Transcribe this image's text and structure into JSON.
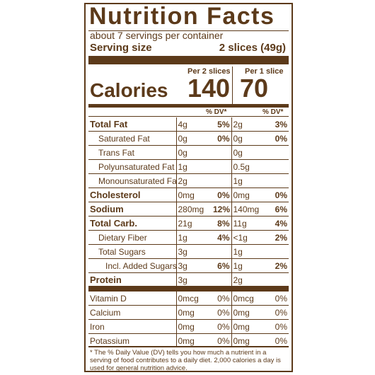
{
  "title": "Nutrition Facts",
  "servings_per_container": "about 7 servings per container",
  "serving_size_label": "Serving size",
  "serving_size_value": "2 slices (49g)",
  "col1_header": "Per 2 slices",
  "col2_header": "Per 1 slice",
  "calories_label": "Calories",
  "calories_col1": "140",
  "calories_col2": "70",
  "dv_header": "% DV*",
  "nutrients": [
    {
      "name": "Total Fat",
      "bold": true,
      "indent": 0,
      "amt1": "4g",
      "dv1": "5%",
      "amt2": "2g",
      "dv2": "3%"
    },
    {
      "name": "Saturated Fat",
      "bold": false,
      "indent": 1,
      "amt1": "0g",
      "dv1": "0%",
      "amt2": "0g",
      "dv2": "0%"
    },
    {
      "name": "Trans Fat",
      "bold": false,
      "indent": 1,
      "amt1": "0g",
      "dv1": "",
      "amt2": "0g",
      "dv2": ""
    },
    {
      "name": "Polyunsaturated Fat",
      "bold": false,
      "indent": 1,
      "amt1": "1g",
      "dv1": "",
      "amt2": "0.5g",
      "dv2": ""
    },
    {
      "name": "Monounsaturated Fat",
      "bold": false,
      "indent": 1,
      "amt1": "2g",
      "dv1": "",
      "amt2": "1g",
      "dv2": ""
    },
    {
      "name": "Cholesterol",
      "bold": true,
      "indent": 0,
      "amt1": "0mg",
      "dv1": "0%",
      "amt2": "0mg",
      "dv2": "0%"
    },
    {
      "name": "Sodium",
      "bold": true,
      "indent": 0,
      "amt1": "280mg",
      "dv1": "12%",
      "amt2": "140mg",
      "dv2": "6%"
    },
    {
      "name": "Total Carb.",
      "bold": true,
      "indent": 0,
      "amt1": "21g",
      "dv1": "8%",
      "amt2": "11g",
      "dv2": "4%"
    },
    {
      "name": "Dietary Fiber",
      "bold": false,
      "indent": 1,
      "amt1": "1g",
      "dv1": "4%",
      "amt2": "<1g",
      "dv2": "2%"
    },
    {
      "name": "Total Sugars",
      "bold": false,
      "indent": 1,
      "amt1": "3g",
      "dv1": "",
      "amt2": "1g",
      "dv2": ""
    },
    {
      "name": "Incl. Added Sugars",
      "bold": false,
      "indent": 2,
      "amt1": "3g",
      "dv1": "6%",
      "amt2": "1g",
      "dv2": "2%"
    },
    {
      "name": "Protein",
      "bold": true,
      "indent": 0,
      "amt1": "3g",
      "dv1": "",
      "amt2": "2g",
      "dv2": ""
    }
  ],
  "vitamins": [
    {
      "name": "Vitamin D",
      "amt1": "0mcg",
      "dv1": "0%",
      "amt2": "0mcg",
      "dv2": "0%"
    },
    {
      "name": "Calcium",
      "amt1": "0mg",
      "dv1": "0%",
      "amt2": "0mg",
      "dv2": "0%"
    },
    {
      "name": "Iron",
      "amt1": "0mg",
      "dv1": "0%",
      "amt2": "0mg",
      "dv2": "0%"
    },
    {
      "name": "Potassium",
      "amt1": "0mg",
      "dv1": "0%",
      "amt2": "0mg",
      "dv2": "0%"
    }
  ],
  "footnote": "* The % Daily Value (DV) tells you how much a nutrient in a serving of food contributes to a daily diet. 2,000 calories a day is used for general nutrition advice.",
  "colors": {
    "ink": "#5c3a1a",
    "background": "#ffffff"
  }
}
